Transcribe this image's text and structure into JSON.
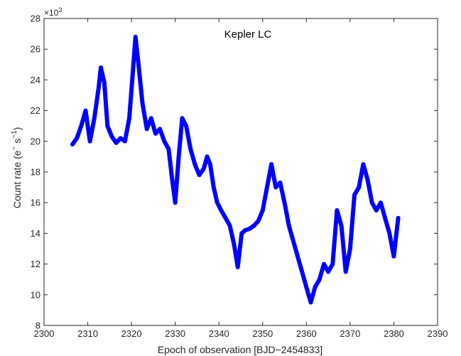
{
  "chart_data": {
    "type": "scatter",
    "annotation": "Kepler LC",
    "xlabel": "Epoch of observation [BJD−2454833]",
    "ylabel_main": "Count rate (e",
    "ylabel_sup1": "−",
    "ylabel_mid": " s",
    "ylabel_sup2": "−1",
    "ylabel_end": ")",
    "y_multiplier": {
      "base": "×10",
      "exponent": "3"
    },
    "xlim": [
      2300,
      2390
    ],
    "ylim": [
      8,
      28
    ],
    "xticks": [
      2300,
      2310,
      2320,
      2330,
      2340,
      2350,
      2360,
      2370,
      2380,
      2390
    ],
    "yticks": [
      8,
      10,
      12,
      14,
      16,
      18,
      20,
      22,
      24,
      26,
      28
    ],
    "grid": false,
    "marker": "x",
    "series_color": "#0000ff",
    "series": [
      {
        "x": [
          2306.5,
          2307.5,
          2308.5,
          2309.5,
          2310.5,
          2311.5,
          2312.5,
          2313.0,
          2313.8,
          2314.5,
          2315.5,
          2316.5,
          2317.5,
          2318.5,
          2319.5,
          2320.3,
          2320.9,
          2321.6,
          2322.5,
          2323.5,
          2324.5,
          2325.5,
          2326.5,
          2327.5,
          2328.5,
          2329.3,
          2330.0,
          2330.8,
          2331.6,
          2332.5,
          2333.5,
          2334.5,
          2335.5,
          2336.5,
          2337.3,
          2338.0,
          2338.8,
          2339.6,
          2340.5,
          2341.5,
          2342.5,
          2343.5,
          2344.3,
          2345.2,
          2346.0,
          2347.0,
          2348.0,
          2349.0,
          2350.0,
          2351.0,
          2352.0,
          2353.0,
          2354.0,
          2355.0,
          2356.0,
          2357.0,
          2358.0,
          2359.0,
          2360.0,
          2361.0,
          2362.0,
          2363.0,
          2364.0,
          2365.0,
          2366.0,
          2367.0,
          2368.0,
          2369.0,
          2370.0,
          2371.0,
          2372.0,
          2373.0,
          2374.0,
          2375.0,
          2376.0,
          2377.0,
          2378.0,
          2379.0,
          2380.0,
          2381.0
        ],
        "y": [
          19.8,
          20.2,
          21.0,
          22.0,
          20.0,
          21.5,
          23.5,
          24.8,
          23.8,
          21.0,
          20.3,
          19.9,
          20.2,
          20.0,
          21.5,
          24.5,
          26.8,
          25.0,
          22.5,
          20.8,
          21.5,
          20.5,
          20.8,
          20.0,
          19.5,
          17.5,
          16.0,
          19.0,
          21.5,
          21.0,
          19.5,
          18.5,
          17.8,
          18.2,
          19.0,
          18.5,
          17.0,
          16.0,
          15.5,
          15.0,
          14.5,
          13.2,
          11.8,
          14.0,
          14.2,
          14.3,
          14.5,
          14.8,
          15.5,
          17.0,
          18.5,
          17.0,
          17.3,
          16.0,
          14.5,
          13.5,
          12.5,
          11.5,
          10.5,
          9.5,
          10.5,
          11.0,
          12.0,
          11.5,
          12.0,
          15.5,
          14.5,
          11.5,
          13.0,
          16.5,
          17.0,
          18.5,
          17.5,
          16.0,
          15.5,
          16.0,
          15.0,
          14.0,
          12.5,
          15.0
        ]
      }
    ]
  }
}
